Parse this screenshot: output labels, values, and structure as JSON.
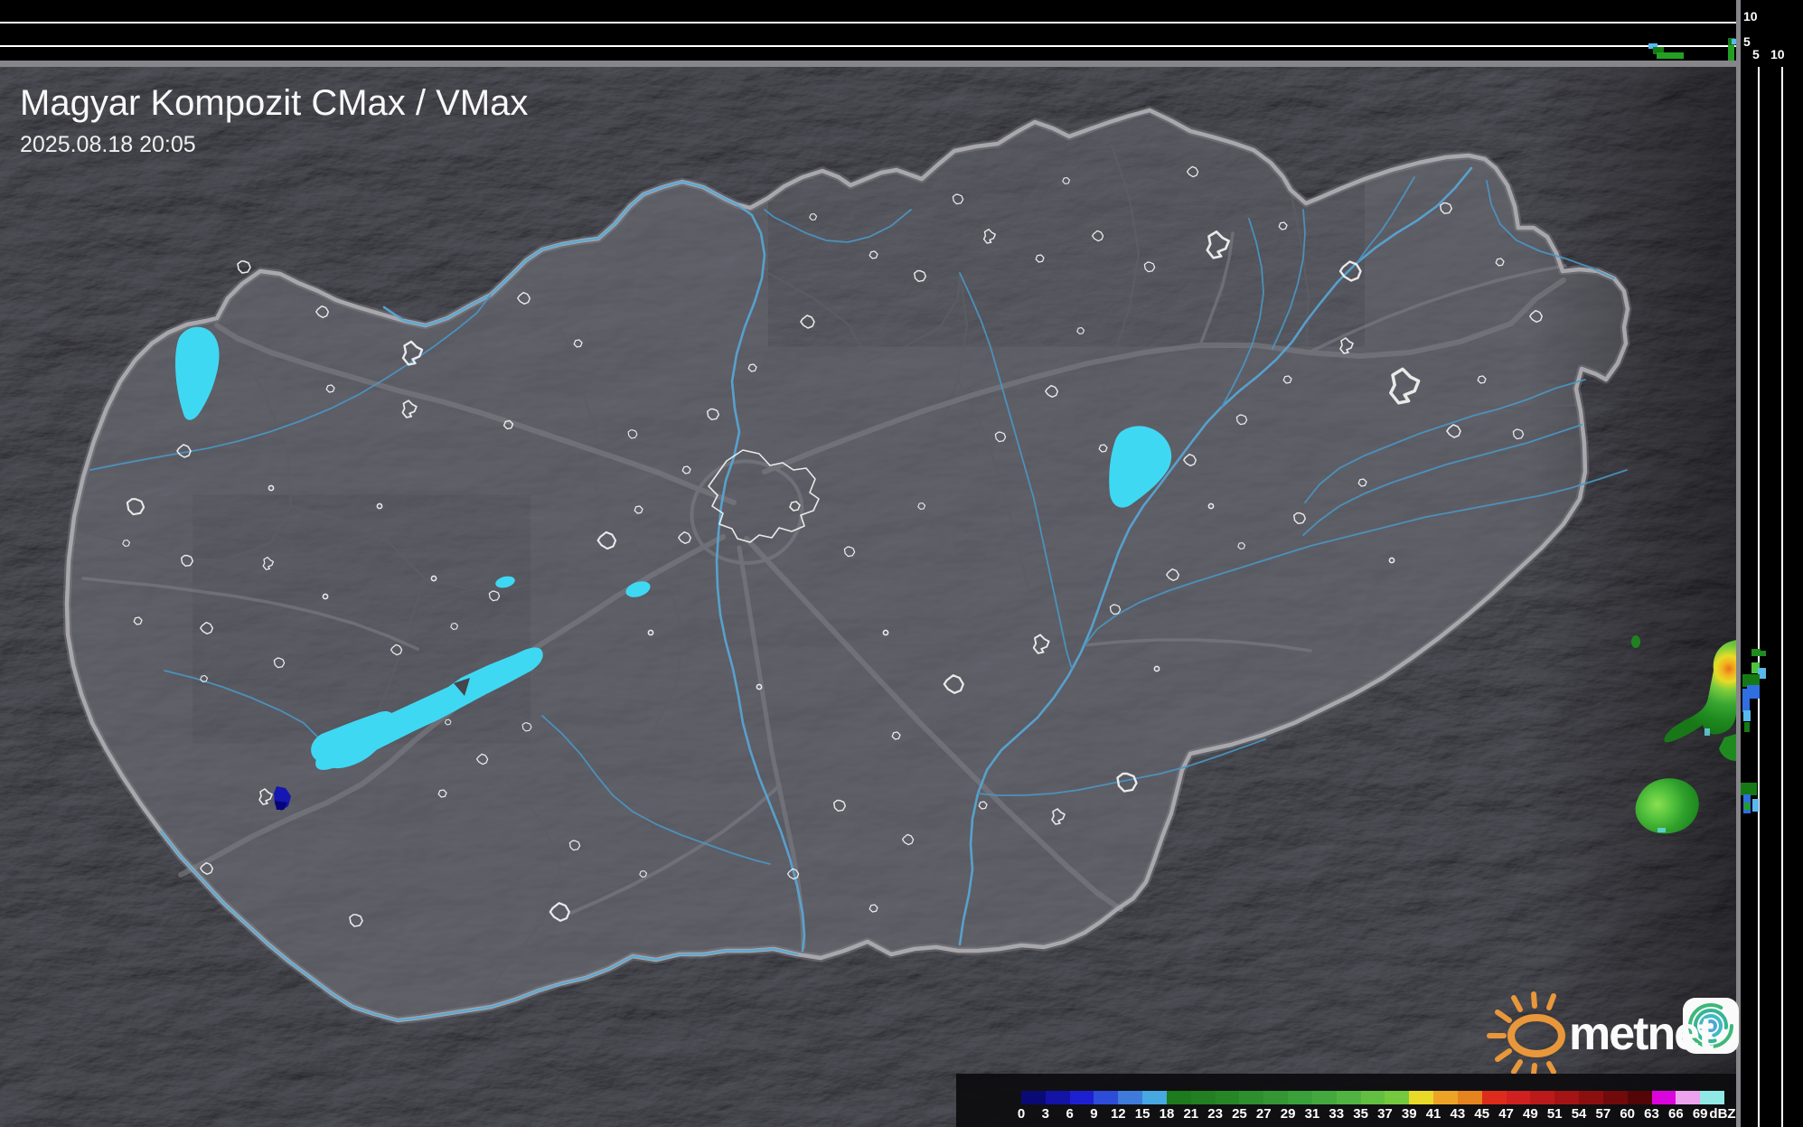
{
  "header": {
    "title": "Magyar Kompozit CMax / VMax",
    "datetime": "2025.08.18 20:05"
  },
  "top_profile_axis": {
    "labels": [
      "10",
      "5"
    ]
  },
  "right_profile_axis": {
    "labels": [
      "5",
      "10"
    ]
  },
  "colorbar": {
    "unit": "dBZ",
    "segments": [
      {
        "label": "0",
        "color": "#0a0a74"
      },
      {
        "label": "3",
        "color": "#1313a6"
      },
      {
        "label": "6",
        "color": "#1f1fd2"
      },
      {
        "label": "9",
        "color": "#2e4cda"
      },
      {
        "label": "12",
        "color": "#3f7bdb"
      },
      {
        "label": "15",
        "color": "#47a8e2"
      },
      {
        "label": "18",
        "color": "#1d7a1d"
      },
      {
        "label": "21",
        "color": "#228022"
      },
      {
        "label": "23",
        "color": "#278727"
      },
      {
        "label": "25",
        "color": "#2d8f2d"
      },
      {
        "label": "27",
        "color": "#349734"
      },
      {
        "label": "29",
        "color": "#3aa039"
      },
      {
        "label": "31",
        "color": "#44a93d"
      },
      {
        "label": "33",
        "color": "#51b341"
      },
      {
        "label": "35",
        "color": "#62bf41"
      },
      {
        "label": "37",
        "color": "#75c93e"
      },
      {
        "label": "39",
        "color": "#e9d928"
      },
      {
        "label": "41",
        "color": "#eda426"
      },
      {
        "label": "43",
        "color": "#e5831f"
      },
      {
        "label": "45",
        "color": "#de2b1b"
      },
      {
        "label": "47",
        "color": "#d12020"
      },
      {
        "label": "49",
        "color": "#bc1a1a"
      },
      {
        "label": "51",
        "color": "#a41414"
      },
      {
        "label": "54",
        "color": "#8c0f0f"
      },
      {
        "label": "57",
        "color": "#710a0a"
      },
      {
        "label": "60",
        "color": "#540606"
      },
      {
        "label": "63",
        "color": "#dc04dc"
      },
      {
        "label": "66",
        "color": "#eda2ed"
      },
      {
        "label": "69",
        "color": "#90e9e4"
      }
    ]
  },
  "logo": {
    "brand": "metnet"
  },
  "colors": {
    "lake": "#3fd8f2",
    "river": "#4a97c4",
    "country_border": "#a8a8ac",
    "weak_echo_blue": "#1616b2",
    "echo_green": "#1f8a20",
    "echo_core_orange": "#e8721c"
  }
}
